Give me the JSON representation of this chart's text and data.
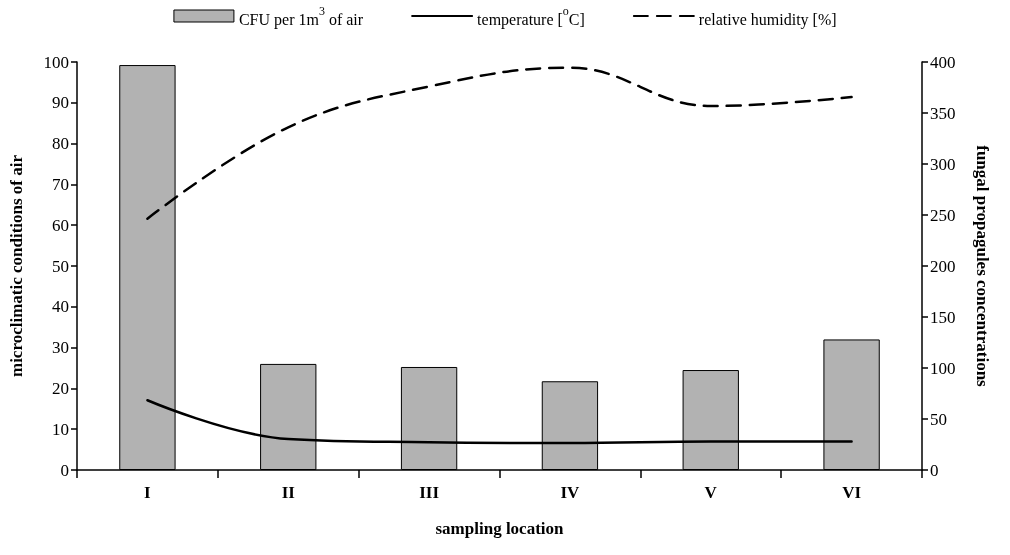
{
  "chart_data": {
    "type": "bar",
    "xlabel": "sampling location",
    "ylabel": "microclimatic conditions of air",
    "y2label": "fungal propagules concentrations",
    "categories": [
      "I",
      "II",
      "III",
      "IV",
      "V",
      "VI"
    ],
    "series": [
      {
        "name": "CFU per 1m$^{3}$ of air",
        "axis": "y2",
        "color": "#b2b2b2",
        "values": [
          397,
          104,
          101,
          87,
          98,
          128
        ]
      },
      {
        "name": "temperature [$^{o}$C]",
        "type": "line",
        "color": "#000000",
        "line_style": "solid",
        "values": [
          17.1,
          7.6,
          6.8,
          6.6,
          7.0,
          7.0
        ]
      },
      {
        "name": "relative humidity [%]",
        "type": "line",
        "color": "#000000",
        "line_style": "dashed",
        "values": [
          61.6,
          84,
          94,
          98.6,
          89.2,
          91.4
        ]
      }
    ],
    "ylim": [
      0,
      100
    ],
    "yticks": [
      0,
      10,
      20,
      30,
      40,
      50,
      60,
      70,
      80,
      90,
      100
    ],
    "y2lim": [
      0,
      400
    ],
    "y2ticks": [
      0,
      50,
      100,
      150,
      200,
      250,
      300,
      350,
      400
    ],
    "grid": false,
    "legend": "top",
    "marker": "none"
  }
}
